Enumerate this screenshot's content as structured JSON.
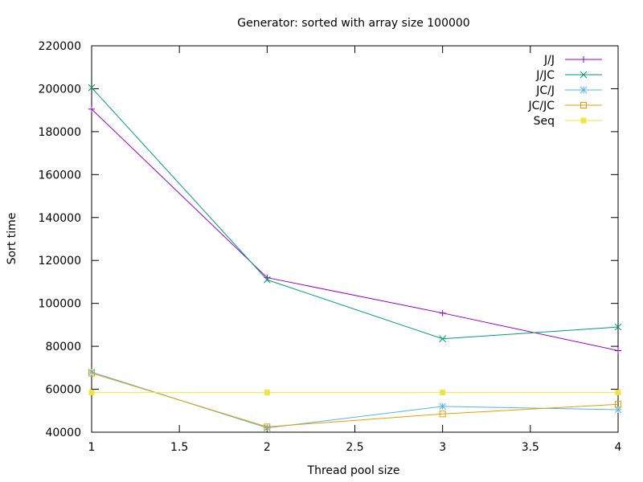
{
  "chart_data": {
    "type": "line",
    "title": "Generator: sorted with array size 100000",
    "xlabel": "Thread pool size",
    "ylabel": "Sort time",
    "xlim": [
      1,
      4
    ],
    "ylim": [
      40000,
      220000
    ],
    "xticks": [
      "1",
      "1.5",
      "2",
      "2.5",
      "3",
      "3.5",
      "4"
    ],
    "yticks": [
      "40000",
      "60000",
      "80000",
      "100000",
      "120000",
      "140000",
      "160000",
      "180000",
      "200000",
      "220000"
    ],
    "grid": false,
    "legend_position": "top-right",
    "x": [
      1,
      2,
      3,
      4
    ],
    "series": [
      {
        "name": "J/J",
        "color": "#9400d3",
        "marker": "plus",
        "values": [
          190500,
          112000,
          95500,
          78000
        ]
      },
      {
        "name": "J/JC",
        "color": "#009e73",
        "marker": "cross",
        "values": [
          200500,
          111000,
          83500,
          89000
        ]
      },
      {
        "name": "JC/J",
        "color": "#56b4e9",
        "marker": "star",
        "values": [
          68000,
          42000,
          52000,
          50500
        ]
      },
      {
        "name": "JC/JC",
        "color": "#e69f00",
        "marker": "open-square",
        "values": [
          67500,
          42500,
          48500,
          53000
        ]
      },
      {
        "name": "Seq",
        "color": "#f0e442",
        "marker": "filled-square",
        "values": [
          58500,
          58500,
          58500,
          58500
        ]
      }
    ]
  }
}
